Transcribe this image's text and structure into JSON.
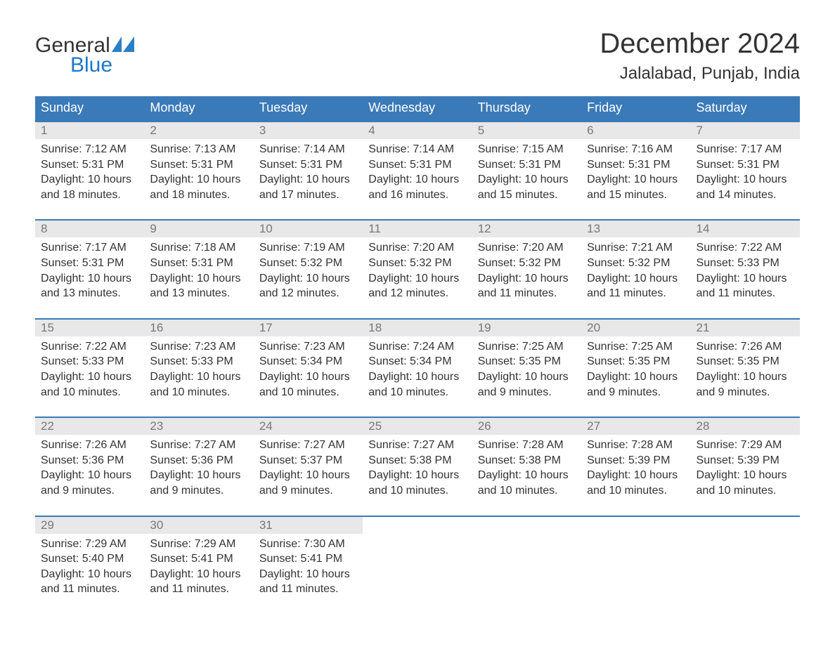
{
  "brand": {
    "general_text": "General",
    "blue_text": "Blue",
    "sail_color": "#2a80c5",
    "general_color": "#333333",
    "blue_color": "#1f78c8"
  },
  "title": {
    "month": "December 2024",
    "location": "Jalalabad, Punjab, India"
  },
  "colors": {
    "header_bg": "#3a7ab8",
    "header_text": "#ffffff",
    "row_divider": "#3a7ab8",
    "daynum_bg": "#e8e8e8",
    "daynum_text": "#777777",
    "body_text": "#333333",
    "background": "#ffffff"
  },
  "weekdays": [
    "Sunday",
    "Monday",
    "Tuesday",
    "Wednesday",
    "Thursday",
    "Friday",
    "Saturday"
  ],
  "days": [
    {
      "n": "1",
      "sunrise": "Sunrise: 7:12 AM",
      "sunset": "Sunset: 5:31 PM",
      "daylight1": "Daylight: 10 hours",
      "daylight2": "and 18 minutes."
    },
    {
      "n": "2",
      "sunrise": "Sunrise: 7:13 AM",
      "sunset": "Sunset: 5:31 PM",
      "daylight1": "Daylight: 10 hours",
      "daylight2": "and 18 minutes."
    },
    {
      "n": "3",
      "sunrise": "Sunrise: 7:14 AM",
      "sunset": "Sunset: 5:31 PM",
      "daylight1": "Daylight: 10 hours",
      "daylight2": "and 17 minutes."
    },
    {
      "n": "4",
      "sunrise": "Sunrise: 7:14 AM",
      "sunset": "Sunset: 5:31 PM",
      "daylight1": "Daylight: 10 hours",
      "daylight2": "and 16 minutes."
    },
    {
      "n": "5",
      "sunrise": "Sunrise: 7:15 AM",
      "sunset": "Sunset: 5:31 PM",
      "daylight1": "Daylight: 10 hours",
      "daylight2": "and 15 minutes."
    },
    {
      "n": "6",
      "sunrise": "Sunrise: 7:16 AM",
      "sunset": "Sunset: 5:31 PM",
      "daylight1": "Daylight: 10 hours",
      "daylight2": "and 15 minutes."
    },
    {
      "n": "7",
      "sunrise": "Sunrise: 7:17 AM",
      "sunset": "Sunset: 5:31 PM",
      "daylight1": "Daylight: 10 hours",
      "daylight2": "and 14 minutes."
    },
    {
      "n": "8",
      "sunrise": "Sunrise: 7:17 AM",
      "sunset": "Sunset: 5:31 PM",
      "daylight1": "Daylight: 10 hours",
      "daylight2": "and 13 minutes."
    },
    {
      "n": "9",
      "sunrise": "Sunrise: 7:18 AM",
      "sunset": "Sunset: 5:31 PM",
      "daylight1": "Daylight: 10 hours",
      "daylight2": "and 13 minutes."
    },
    {
      "n": "10",
      "sunrise": "Sunrise: 7:19 AM",
      "sunset": "Sunset: 5:32 PM",
      "daylight1": "Daylight: 10 hours",
      "daylight2": "and 12 minutes."
    },
    {
      "n": "11",
      "sunrise": "Sunrise: 7:20 AM",
      "sunset": "Sunset: 5:32 PM",
      "daylight1": "Daylight: 10 hours",
      "daylight2": "and 12 minutes."
    },
    {
      "n": "12",
      "sunrise": "Sunrise: 7:20 AM",
      "sunset": "Sunset: 5:32 PM",
      "daylight1": "Daylight: 10 hours",
      "daylight2": "and 11 minutes."
    },
    {
      "n": "13",
      "sunrise": "Sunrise: 7:21 AM",
      "sunset": "Sunset: 5:32 PM",
      "daylight1": "Daylight: 10 hours",
      "daylight2": "and 11 minutes."
    },
    {
      "n": "14",
      "sunrise": "Sunrise: 7:22 AM",
      "sunset": "Sunset: 5:33 PM",
      "daylight1": "Daylight: 10 hours",
      "daylight2": "and 11 minutes."
    },
    {
      "n": "15",
      "sunrise": "Sunrise: 7:22 AM",
      "sunset": "Sunset: 5:33 PM",
      "daylight1": "Daylight: 10 hours",
      "daylight2": "and 10 minutes."
    },
    {
      "n": "16",
      "sunrise": "Sunrise: 7:23 AM",
      "sunset": "Sunset: 5:33 PM",
      "daylight1": "Daylight: 10 hours",
      "daylight2": "and 10 minutes."
    },
    {
      "n": "17",
      "sunrise": "Sunrise: 7:23 AM",
      "sunset": "Sunset: 5:34 PM",
      "daylight1": "Daylight: 10 hours",
      "daylight2": "and 10 minutes."
    },
    {
      "n": "18",
      "sunrise": "Sunrise: 7:24 AM",
      "sunset": "Sunset: 5:34 PM",
      "daylight1": "Daylight: 10 hours",
      "daylight2": "and 10 minutes."
    },
    {
      "n": "19",
      "sunrise": "Sunrise: 7:25 AM",
      "sunset": "Sunset: 5:35 PM",
      "daylight1": "Daylight: 10 hours",
      "daylight2": "and 9 minutes."
    },
    {
      "n": "20",
      "sunrise": "Sunrise: 7:25 AM",
      "sunset": "Sunset: 5:35 PM",
      "daylight1": "Daylight: 10 hours",
      "daylight2": "and 9 minutes."
    },
    {
      "n": "21",
      "sunrise": "Sunrise: 7:26 AM",
      "sunset": "Sunset: 5:35 PM",
      "daylight1": "Daylight: 10 hours",
      "daylight2": "and 9 minutes."
    },
    {
      "n": "22",
      "sunrise": "Sunrise: 7:26 AM",
      "sunset": "Sunset: 5:36 PM",
      "daylight1": "Daylight: 10 hours",
      "daylight2": "and 9 minutes."
    },
    {
      "n": "23",
      "sunrise": "Sunrise: 7:27 AM",
      "sunset": "Sunset: 5:36 PM",
      "daylight1": "Daylight: 10 hours",
      "daylight2": "and 9 minutes."
    },
    {
      "n": "24",
      "sunrise": "Sunrise: 7:27 AM",
      "sunset": "Sunset: 5:37 PM",
      "daylight1": "Daylight: 10 hours",
      "daylight2": "and 9 minutes."
    },
    {
      "n": "25",
      "sunrise": "Sunrise: 7:27 AM",
      "sunset": "Sunset: 5:38 PM",
      "daylight1": "Daylight: 10 hours",
      "daylight2": "and 10 minutes."
    },
    {
      "n": "26",
      "sunrise": "Sunrise: 7:28 AM",
      "sunset": "Sunset: 5:38 PM",
      "daylight1": "Daylight: 10 hours",
      "daylight2": "and 10 minutes."
    },
    {
      "n": "27",
      "sunrise": "Sunrise: 7:28 AM",
      "sunset": "Sunset: 5:39 PM",
      "daylight1": "Daylight: 10 hours",
      "daylight2": "and 10 minutes."
    },
    {
      "n": "28",
      "sunrise": "Sunrise: 7:29 AM",
      "sunset": "Sunset: 5:39 PM",
      "daylight1": "Daylight: 10 hours",
      "daylight2": "and 10 minutes."
    },
    {
      "n": "29",
      "sunrise": "Sunrise: 7:29 AM",
      "sunset": "Sunset: 5:40 PM",
      "daylight1": "Daylight: 10 hours",
      "daylight2": "and 11 minutes."
    },
    {
      "n": "30",
      "sunrise": "Sunrise: 7:29 AM",
      "sunset": "Sunset: 5:41 PM",
      "daylight1": "Daylight: 10 hours",
      "daylight2": "and 11 minutes."
    },
    {
      "n": "31",
      "sunrise": "Sunrise: 7:30 AM",
      "sunset": "Sunset: 5:41 PM",
      "daylight1": "Daylight: 10 hours",
      "daylight2": "and 11 minutes."
    }
  ],
  "layout": {
    "leading_blanks": 0,
    "trailing_blanks": 4,
    "columns": 7
  }
}
